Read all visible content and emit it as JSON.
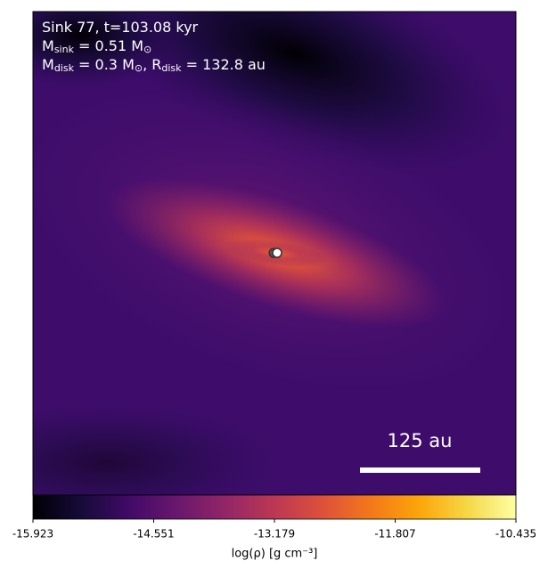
{
  "chart_data": {
    "type": "image",
    "annotations": [
      [
        {
          "text": "Sink 77, t=103.08 kyr"
        }
      ],
      [
        {
          "text": "M"
        },
        {
          "sub": "sink"
        },
        {
          "text": " = 0.51 M"
        },
        {
          "sub": "⊙"
        }
      ],
      [
        {
          "text": "M"
        },
        {
          "sub": "disk"
        },
        {
          "text": " = 0.3 M"
        },
        {
          "sub": "⊙"
        },
        {
          "text": ", R"
        },
        {
          "sub": "disk"
        },
        {
          "text": " = 132.8 au"
        }
      ]
    ],
    "scale_bar_label": "125 au",
    "colorbar_label": "log(ρ) [g cm⁻³]",
    "colormap": [
      "#000004",
      "#160b39",
      "#420a68",
      "#6a176e",
      "#932667",
      "#bc3754",
      "#dd513a",
      "#f37819",
      "#fca50a",
      "#f6d746",
      "#fcffa4"
    ],
    "clim": [
      -15.923,
      -10.435
    ],
    "cticks": [
      -15.923,
      -14.551,
      -13.179,
      -11.807,
      -10.435
    ]
  }
}
